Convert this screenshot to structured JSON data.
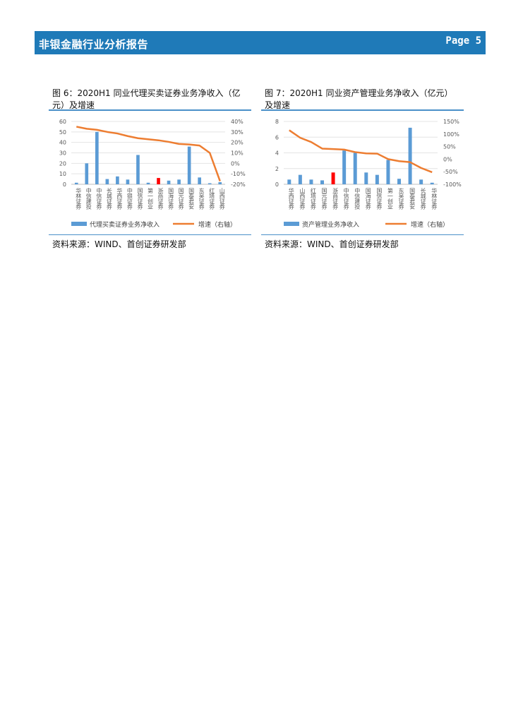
{
  "header": {
    "title": "非银金融行业分析报告",
    "page": "Page 5"
  },
  "figures": [
    {
      "title_line1": "图 6：2020H1 同业代理买卖证券业务净收入（亿",
      "title_line2": "元）及增速",
      "source": "资料来源：WIND、首创证券研发部"
    },
    {
      "title_line1": "图 7：2020H1 同业资产管理业务净收入（亿元）",
      "title_line2": "及增速",
      "source": "资料来源：WIND、首创证券研发部"
    }
  ],
  "chart_data": [
    {
      "type": "bar",
      "categories": [
        "华林证券",
        "中信建投",
        "中信证券",
        "长城证券",
        "华西证券",
        "中银证券",
        "国信证券",
        "第一创业",
        "浙商证券",
        "国海证券",
        "国元证券",
        "国泰君安",
        "东吴证券",
        "红塔证券",
        "山西证券"
      ],
      "series": [
        {
          "name": "代理买卖证券业务净收入",
          "axis": "left",
          "kind": "bar",
          "values": [
            1.5,
            20,
            50,
            5,
            7.5,
            4.5,
            28,
            1.5,
            6,
            3.5,
            4.5,
            36,
            6.5,
            1,
            2
          ],
          "highlight_index": 8,
          "color": "#5b9bd5",
          "highlight_color": "#ff0000"
        },
        {
          "name": "增速（右轴）",
          "axis": "right",
          "kind": "line",
          "values": [
            35,
            33,
            32,
            30,
            28.5,
            26,
            24,
            23,
            22,
            20.5,
            18.5,
            18,
            17,
            10,
            -17
          ],
          "color": "#ed7d31"
        }
      ],
      "yticks_left": [
        "0",
        "10",
        "20",
        "30",
        "40",
        "50",
        "60"
      ],
      "yticks_right": [
        "-20%",
        "-10%",
        "0%",
        "10%",
        "20%",
        "30%",
        "40%"
      ],
      "ylim_left": [
        0,
        60
      ],
      "ylim_right": [
        -20,
        40
      ],
      "grid": true,
      "legend": "bottom"
    },
    {
      "type": "bar",
      "categories": [
        "华西证券",
        "山西证券",
        "红塔证券",
        "国元证券",
        "浙商证券",
        "中信证券",
        "中信建投",
        "国海证券",
        "国信证券",
        "第一创业",
        "东吴证券",
        "国泰君安",
        "长城证券",
        "华林证券"
      ],
      "series": [
        {
          "name": "资产管理业务净收入",
          "axis": "left",
          "kind": "bar",
          "values": [
            0.6,
            1.2,
            0.6,
            0.5,
            1.5,
            4.3,
            4.0,
            1.5,
            1.2,
            3.1,
            0.7,
            7.2,
            0.6,
            0.2
          ],
          "highlight_index": 4,
          "color": "#5b9bd5",
          "highlight_color": "#ff0000"
        },
        {
          "name": "增速（右轴）",
          "axis": "right",
          "kind": "line",
          "values": [
            115,
            85,
            68,
            42,
            40,
            38,
            28,
            23,
            22,
            0,
            -8,
            -12,
            -35,
            -52
          ],
          "color": "#ed7d31"
        }
      ],
      "yticks_left": [
        "0",
        "2",
        "4",
        "6",
        "8"
      ],
      "yticks_right": [
        "-100%",
        "-50%",
        "0%",
        "50%",
        "100%",
        "150%"
      ],
      "ylim_left": [
        0,
        8
      ],
      "ylim_right": [
        -100,
        150
      ],
      "grid": true,
      "legend": "bottom"
    }
  ]
}
